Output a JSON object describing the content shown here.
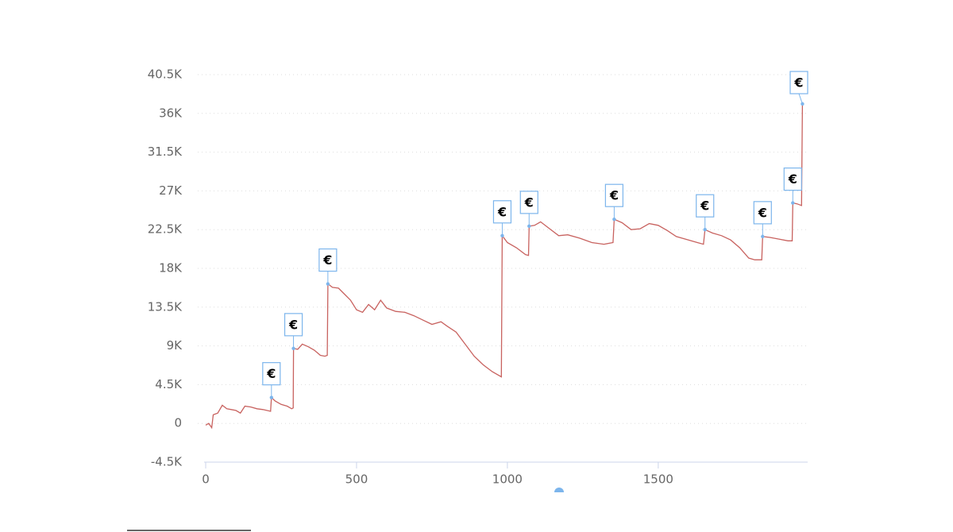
{
  "chart_data": {
    "type": "line",
    "x": [
      0,
      10,
      20,
      25,
      40,
      55,
      70,
      85,
      100,
      115,
      130,
      150,
      170,
      190,
      215,
      218,
      230,
      250,
      270,
      285,
      290,
      291,
      305,
      320,
      340,
      360,
      380,
      395,
      403,
      405,
      420,
      440,
      460,
      480,
      500,
      520,
      540,
      560,
      580,
      600,
      630,
      660,
      690,
      720,
      750,
      780,
      800,
      830,
      860,
      890,
      920,
      950,
      980,
      983,
      1000,
      1030,
      1060,
      1070,
      1072,
      1090,
      1110,
      1140,
      1170,
      1200,
      1240,
      1280,
      1320,
      1350,
      1354,
      1380,
      1410,
      1440,
      1470,
      1500,
      1530,
      1560,
      1590,
      1630,
      1650,
      1655,
      1680,
      1710,
      1740,
      1770,
      1800,
      1820,
      1843,
      1846,
      1870,
      1900,
      1930,
      1944,
      1946,
      1960,
      1975,
      1978
    ],
    "series": [
      {
        "color": "#c8625f",
        "values": [
          -200,
          0,
          -500,
          1000,
          1200,
          2100,
          1700,
          1600,
          1500,
          1200,
          2000,
          1900,
          1700,
          1600,
          1400,
          3000,
          2600,
          2200,
          2000,
          1700,
          1800,
          8700,
          8600,
          9200,
          8900,
          8500,
          7900,
          7800,
          7900,
          16200,
          15800,
          15700,
          15000,
          14300,
          13200,
          12900,
          13800,
          13200,
          14300,
          13400,
          13000,
          12900,
          12500,
          12000,
          11500,
          11800,
          11300,
          10600,
          9200,
          7800,
          6800,
          6000,
          5400,
          21800,
          21000,
          20400,
          19600,
          19500,
          22900,
          23000,
          23400,
          22600,
          21800,
          21900,
          21500,
          21000,
          20800,
          21000,
          23700,
          23300,
          22500,
          22600,
          23200,
          23000,
          22400,
          21700,
          21400,
          21000,
          20800,
          22500,
          22100,
          21800,
          21300,
          20400,
          19200,
          19000,
          19000,
          21700,
          21600,
          21400,
          21200,
          21200,
          25600,
          25500,
          25300,
          37100
        ]
      }
    ],
    "flags": [
      {
        "x": 218,
        "y": 3000,
        "label": "€"
      },
      {
        "x": 291,
        "y": 8700,
        "label": "€"
      },
      {
        "x": 405,
        "y": 16200,
        "label": "€"
      },
      {
        "x": 983,
        "y": 21800,
        "label": "€"
      },
      {
        "x": 1072,
        "y": 22900,
        "label": "€"
      },
      {
        "x": 1354,
        "y": 23700,
        "label": "€"
      },
      {
        "x": 1655,
        "y": 22500,
        "label": "€"
      },
      {
        "x": 1846,
        "y": 21700,
        "label": "€"
      },
      {
        "x": 1946,
        "y": 25600,
        "label": "€"
      },
      {
        "x": 1978,
        "y": 37100,
        "label": "€"
      }
    ],
    "flag_color": "#7cb5ec",
    "xlim": [
      0,
      1990
    ],
    "xticks": [
      0,
      500,
      1000,
      1500
    ],
    "ylim": [
      -4500,
      40500
    ],
    "yticks": [
      {
        "value": -4500,
        "label": "-4.5K"
      },
      0,
      {
        "value": 4500,
        "label": "4.5K"
      },
      {
        "value": 9000,
        "label": "9K"
      },
      {
        "value": 13500,
        "label": "13.5K"
      },
      {
        "value": 18000,
        "label": "18K"
      },
      {
        "value": 22500,
        "label": "22.5K"
      },
      {
        "value": 27000,
        "label": "27K"
      },
      {
        "value": 31500,
        "label": "31.5K"
      },
      {
        "value": 36000,
        "label": "36K"
      },
      {
        "value": 40500,
        "label": "40.5K"
      }
    ],
    "grid": true
  }
}
